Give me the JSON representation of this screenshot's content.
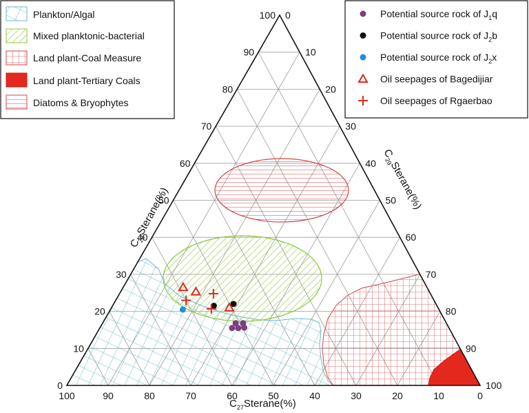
{
  "chart_data": {
    "type": "ternary",
    "title": "",
    "axes": {
      "bottom": {
        "label_main": "C",
        "label_sub": "27",
        "label_rest": "Sterane(%)",
        "ticks": [
          100,
          90,
          80,
          70,
          60,
          50,
          40,
          30,
          20,
          10,
          0
        ]
      },
      "left": {
        "label_main": "C",
        "label_sub": "28",
        "label_rest": "Sterane(%)",
        "ticks": [
          0,
          10,
          20,
          30,
          40,
          50,
          60,
          70,
          80,
          90,
          100
        ]
      },
      "right": {
        "label_main": "C",
        "label_sub": "29",
        "label_rest": "Sterane(%)",
        "ticks": [
          0,
          10,
          20,
          30,
          40,
          50,
          60,
          70,
          80,
          90,
          100
        ]
      }
    },
    "regions": [
      {
        "name": "Plankton/Algal",
        "color": "#6fb8c9",
        "pattern": "diagonal-grid"
      },
      {
        "name": "Mixed planktonic-bacterial",
        "color": "#8dc63f",
        "pattern": "diagonal-lines"
      },
      {
        "name": "Land plant-Coal Measure",
        "color": "#d64545",
        "pattern": "grid"
      },
      {
        "name": "Land plant-Tertiary Coals",
        "color": "#e5281e",
        "pattern": "solid"
      },
      {
        "name": "Diatoms & Bryophytes",
        "color": "#d64545",
        "pattern": "horizontal-lines"
      }
    ],
    "legend_samples": [
      {
        "name_main": "Potential source rock of J",
        "name_sub": "1",
        "name_tail": "q",
        "marker": "circle",
        "color": "#7b3f7e"
      },
      {
        "name_main": "Potential source rock of J",
        "name_sub": "2",
        "name_tail": "b",
        "marker": "circle",
        "color": "#111111"
      },
      {
        "name_main": "Potential source rock of J",
        "name_sub": "2",
        "name_tail": "x",
        "marker": "circle",
        "color": "#1e90e0"
      },
      {
        "name_main": "Oil seepages of Bagedijiar",
        "name_sub": "",
        "name_tail": "",
        "marker": "triangle",
        "color": "#e0281e"
      },
      {
        "name_main": "Oil seepages of Rgaerbao",
        "name_sub": "",
        "name_tail": "",
        "marker": "plus",
        "color": "#e0281e"
      }
    ],
    "points": [
      {
        "series": 0,
        "c27": 52.5,
        "c28": 15.5,
        "c29": 32.0
      },
      {
        "series": 0,
        "c27": 51.0,
        "c28": 16.8,
        "c29": 32.2
      },
      {
        "series": 0,
        "c27": 51.0,
        "c28": 15.5,
        "c29": 33.5
      },
      {
        "series": 0,
        "c27": 49.5,
        "c28": 15.6,
        "c29": 34.9
      },
      {
        "series": 0,
        "c27": 49.2,
        "c28": 16.8,
        "c29": 34.0
      },
      {
        "series": 1,
        "c27": 54.0,
        "c28": 21.5,
        "c29": 24.5
      },
      {
        "series": 1,
        "c27": 49.0,
        "c28": 22.0,
        "c29": 29.0
      },
      {
        "series": 2,
        "c27": 62.0,
        "c28": 20.5,
        "c29": 17.5
      },
      {
        "series": 3,
        "c27": 59.0,
        "c28": 26.5,
        "c29": 14.5
      },
      {
        "series": 3,
        "c27": 56.5,
        "c28": 25.3,
        "c29": 18.2
      },
      {
        "series": 3,
        "c27": 50.5,
        "c28": 21.0,
        "c29": 28.5
      },
      {
        "series": 4,
        "c27": 60.0,
        "c28": 23.0,
        "c29": 17.0
      },
      {
        "series": 4,
        "c27": 52.5,
        "c28": 24.8,
        "c29": 22.7
      },
      {
        "series": 4,
        "c27": 55.0,
        "c28": 20.7,
        "c29": 24.3
      }
    ]
  }
}
